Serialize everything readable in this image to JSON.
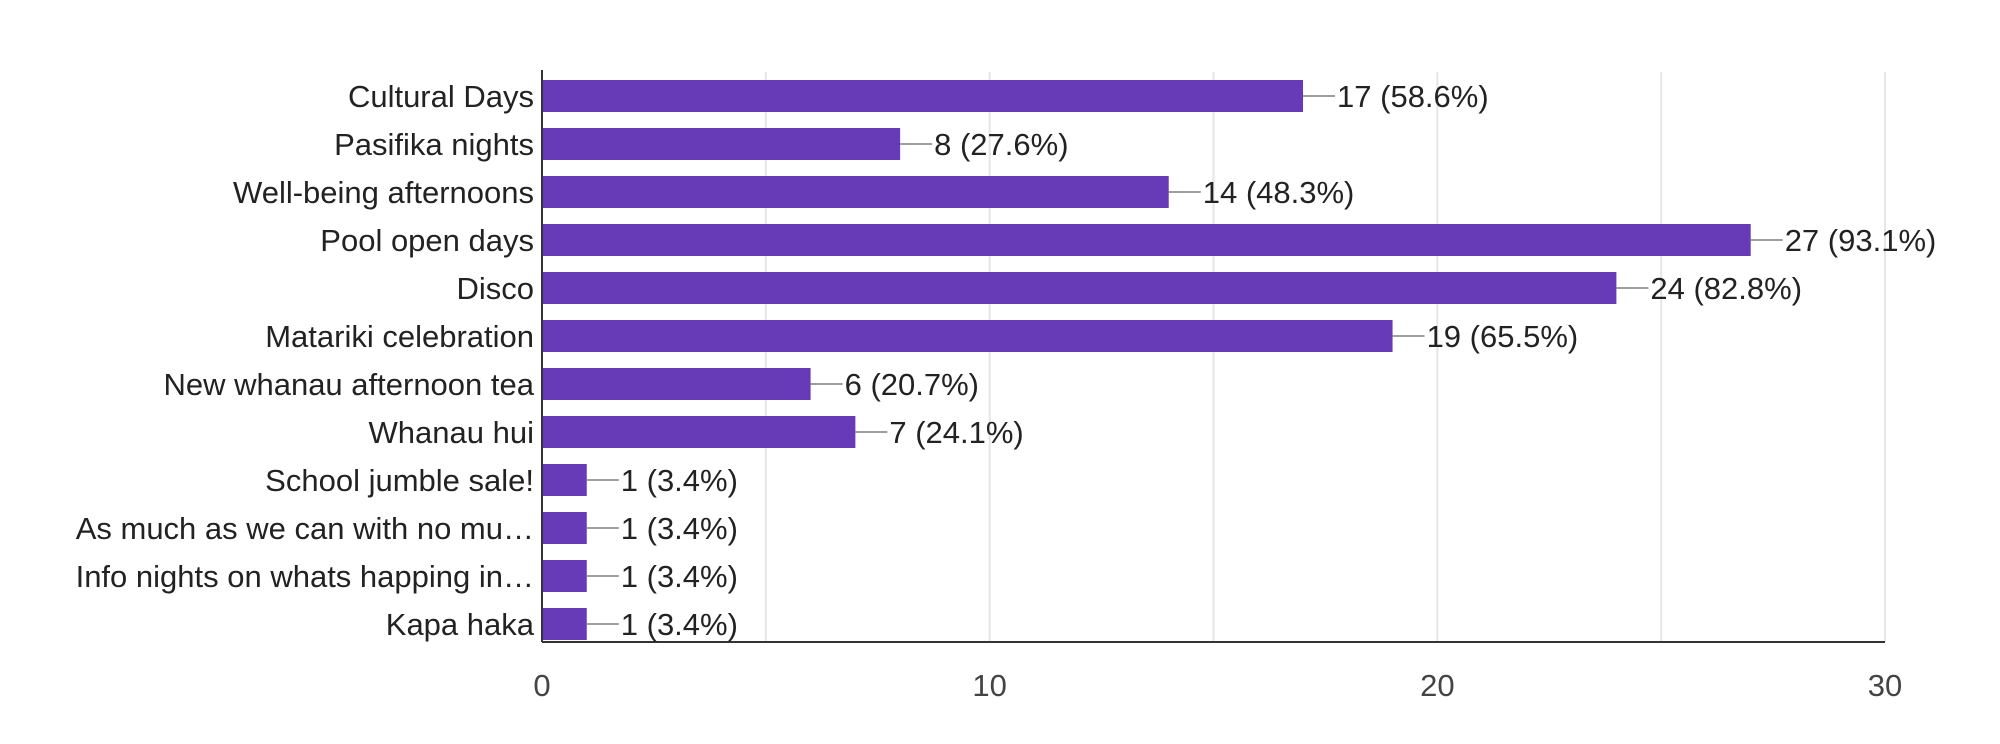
{
  "chart_data": {
    "type": "bar",
    "orientation": "horizontal",
    "title": "",
    "xlabel": "",
    "ylabel": "",
    "xlim": [
      0,
      30
    ],
    "xticks": [
      0,
      10,
      20,
      30
    ],
    "grid": true,
    "bar_color": "#673ab7",
    "connector_color": "#9e9e9e",
    "grid_color": "#e6e6e6",
    "axis_color": "#333333",
    "categories": [
      "Cultural Days",
      "Pasifika nights",
      "Well-being afternoons",
      "Pool open days",
      "Disco",
      "Matariki celebration",
      "New whanau afternoon tea",
      "Whanau hui",
      "School jumble sale!",
      "As much as we can with no mu…",
      "Info nights on whats happing in…",
      "Kapa haka"
    ],
    "values": [
      17,
      8,
      14,
      27,
      24,
      19,
      6,
      7,
      1,
      1,
      1,
      1
    ],
    "data_labels": [
      "17 (58.6%)",
      "8 (27.6%)",
      "14 (48.3%)",
      "27 (93.1%)",
      "24 (82.8%)",
      "19 (65.5%)",
      "6 (20.7%)",
      "7 (24.1%)",
      "1 (3.4%)",
      "1 (3.4%)",
      "1 (3.4%)",
      "1 (3.4%)"
    ]
  }
}
